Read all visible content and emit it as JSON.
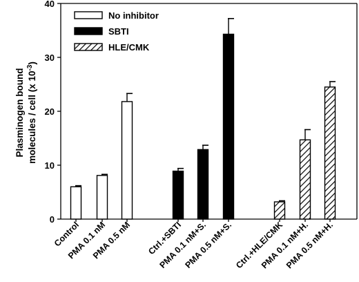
{
  "chart_data": {
    "type": "bar",
    "ylabel_line1": "Plasminogen bound",
    "ylabel_line2": "molecules / cell (x 10",
    "ylabel_exp": "-3",
    "ylabel_close": ")",
    "ylim": [
      0,
      40
    ],
    "yticks": [
      "0",
      "10",
      "20",
      "30",
      "40"
    ],
    "legend_position": "top-left",
    "series": [
      {
        "name": "No inhibitor",
        "fill": "white",
        "categories": [
          "Control",
          "PMA 0.1 nM",
          "PMA 0.5 nM"
        ],
        "values": [
          6.0,
          8.1,
          21.8
        ],
        "errors": [
          0.2,
          0.2,
          1.5
        ]
      },
      {
        "name": "SBTI",
        "fill": "black",
        "categories": [
          "Ctrl.+SBTI",
          "PMA 0.1 nM+S.",
          "PMA 0.5 nM+S."
        ],
        "values": [
          8.9,
          12.9,
          34.3
        ],
        "errors": [
          0.5,
          0.8,
          2.9
        ]
      },
      {
        "name": "HLE/CMK",
        "fill": "hatch",
        "categories": [
          "Ctrl.+HLE/CMK",
          "PMA 0.1 nM+H.",
          "PMA 0.5 nM+H."
        ],
        "values": [
          3.2,
          14.7,
          24.5
        ],
        "errors": [
          0.2,
          1.9,
          1.0
        ]
      }
    ]
  }
}
